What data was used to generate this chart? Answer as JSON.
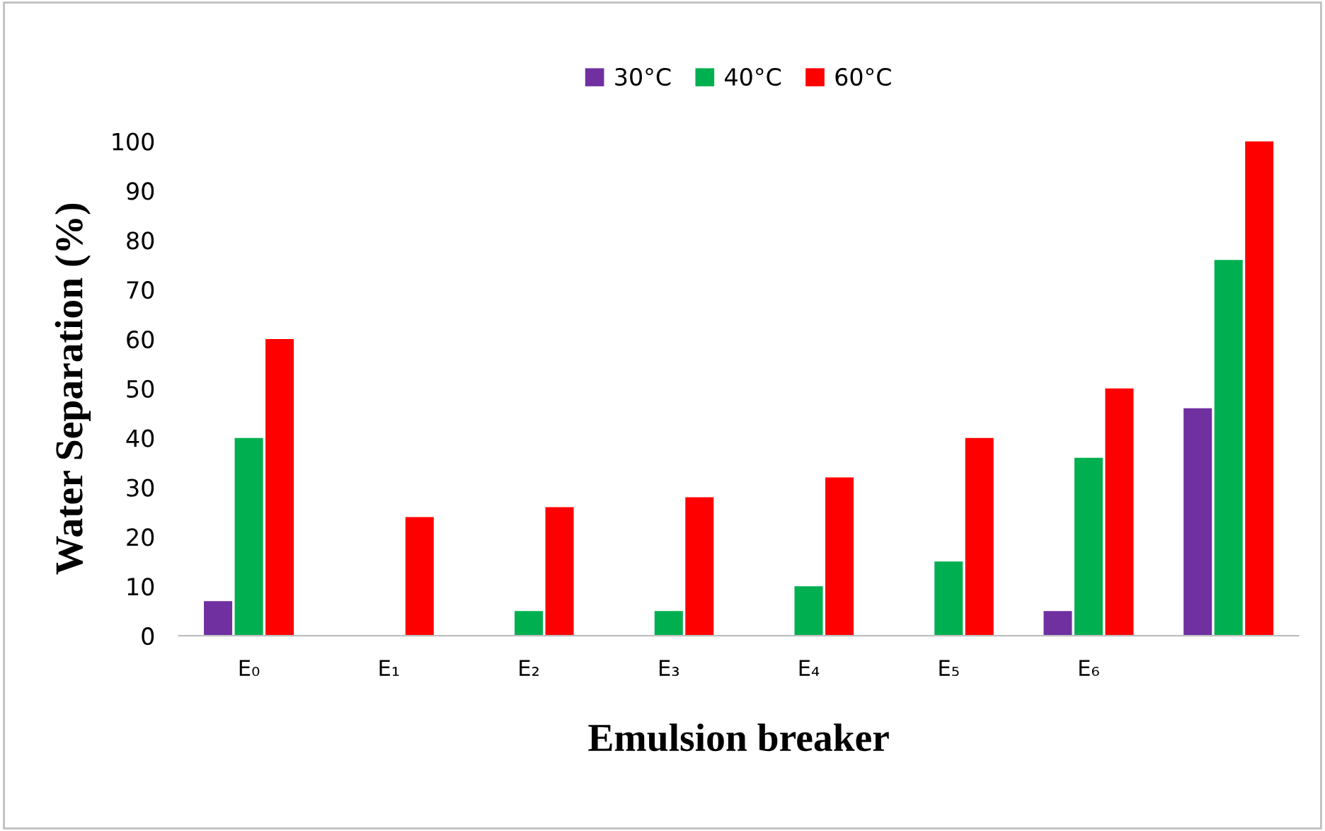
{
  "chart_data": {
    "type": "bar",
    "xlabel": "Emulsion breaker",
    "ylabel": "Water Separation (%)",
    "categories": [
      "E₀",
      "E₁",
      "E₂",
      "E₃",
      "E₄",
      "E₅",
      "E₆",
      null
    ],
    "series": [
      {
        "name": "30°C",
        "color": "#7030a0",
        "values": [
          7,
          0,
          0,
          0,
          0,
          0,
          5,
          46
        ]
      },
      {
        "name": "40°C",
        "color": "#00b050",
        "values": [
          40,
          0,
          5,
          5,
          10,
          15,
          36,
          76
        ]
      },
      {
        "name": "60°C",
        "color": "#ff0000",
        "values": [
          60,
          24,
          26,
          28,
          32,
          40,
          50,
          100
        ]
      }
    ],
    "ylim": [
      0,
      100
    ],
    "yticks": [
      0,
      10,
      20,
      30,
      40,
      50,
      60,
      70,
      80,
      90,
      100
    ],
    "grid": false,
    "legend": "top"
  }
}
